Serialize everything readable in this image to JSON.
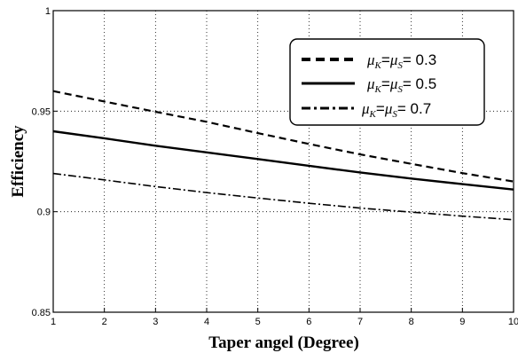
{
  "chart_data": {
    "type": "line",
    "title": "",
    "xlabel": "Taper angel (Degree)",
    "ylabel": "Efficiency",
    "xlim": [
      1,
      10
    ],
    "ylim": [
      0.85,
      1
    ],
    "xticks": [
      1,
      2,
      3,
      4,
      5,
      6,
      7,
      8,
      9,
      10
    ],
    "yticks": [
      0.85,
      0.9,
      0.95,
      1
    ],
    "ytick_labels": [
      "0.85",
      "0.9",
      "0.95",
      "1"
    ],
    "grid": true,
    "legend_position": "top-right",
    "x": [
      1,
      2,
      3,
      4,
      5,
      6,
      7,
      8,
      9,
      10
    ],
    "series": [
      {
        "name": "μK=μS= 0.3",
        "label_mu_k": "μ",
        "label_k_sub": "K",
        "label_eq": "=",
        "label_mu_s": "μ",
        "label_s_sub": "S",
        "label_value": "= 0.3",
        "style": "dashed",
        "values": [
          0.96,
          0.9548,
          0.9497,
          0.9447,
          0.9391,
          0.9337,
          0.9285,
          0.9238,
          0.9192,
          0.915
        ]
      },
      {
        "name": "μK=μS= 0.5",
        "label_mu_k": "μ",
        "label_k_sub": "K",
        "label_eq": "=",
        "label_mu_s": "μ",
        "label_s_sub": "S",
        "label_value": "= 0.5",
        "style": "solid",
        "values": [
          0.94,
          0.9365,
          0.9328,
          0.9295,
          0.9262,
          0.9228,
          0.9195,
          0.9165,
          0.9137,
          0.911
        ]
      },
      {
        "name": "μK=μS= 0.7",
        "label_mu_k": "μ",
        "label_k_sub": "K",
        "label_eq": "=",
        "label_mu_s": "μ",
        "label_s_sub": "S",
        "label_value": "= 0.7",
        "style": "dashdot",
        "values": [
          0.919,
          0.9158,
          0.9125,
          0.9095,
          0.9068,
          0.9042,
          0.9018,
          0.8998,
          0.8978,
          0.896
        ]
      }
    ]
  }
}
